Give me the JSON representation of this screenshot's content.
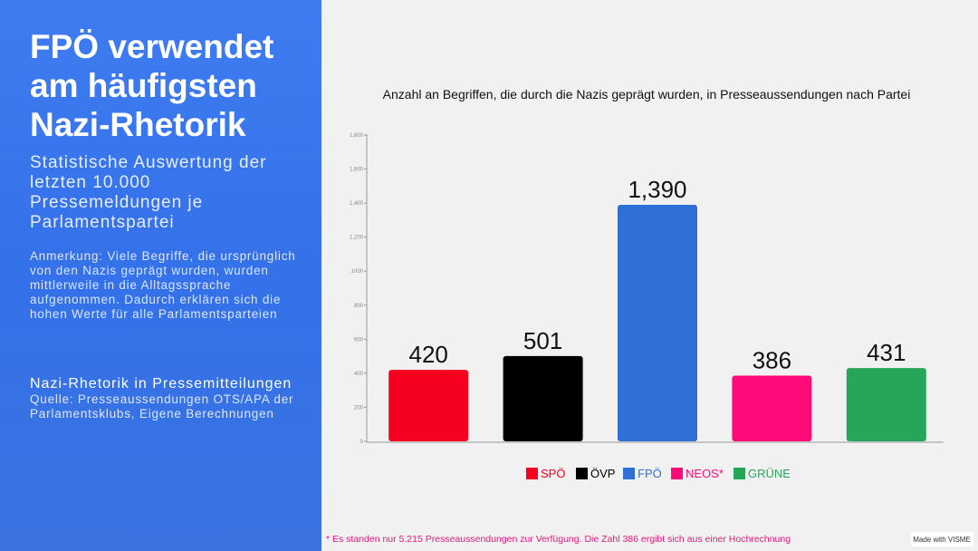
{
  "left_panel": {
    "title": "FPÖ verwendet am häufigsten Nazi-Rhetorik",
    "subtitle": "Statistische Auswertung der letzten 10.000 Pressemeldungen je Parlamentspartei",
    "note": "Anmerkung: Viele Begriffe, die ursprünglich von den Nazis geprägt wurden, wurden mittlerweile in die Alltagssprache aufgenommen. Dadurch erklären sich die hohen Werte für alle Parlamentsparteien",
    "section_title": "Nazi-Rhetorik in Pressemitteilungen",
    "source": "Quelle: Presseaussendungen OTS/APA der Parlamentsklubs, Eigene Berechnungen"
  },
  "chart_data": {
    "type": "bar",
    "title": "Anzahl an Begriffen, die durch die Nazis geprägt wurden, in Presseaussendungen nach Partei",
    "categories": [
      "SPÖ",
      "ÖVP",
      "FPÖ",
      "NEOS*",
      "GRÜNE"
    ],
    "values": [
      420,
      501,
      1390,
      386,
      431
    ],
    "value_labels": [
      "420",
      "501",
      "1,390",
      "386",
      "431"
    ],
    "colors": [
      "#f5001e",
      "#000000",
      "#2f6fd6",
      "#ff0a78",
      "#27a65a"
    ],
    "ylim": [
      0,
      1800
    ],
    "yticks": [
      0,
      200,
      400,
      600,
      800,
      1000,
      {
        "value": 1200,
        "label": "1,200"
      },
      {
        "value": 1400,
        "label": "1,400"
      },
      {
        "value": 1600,
        "label": "1,600"
      },
      {
        "value": 1800,
        "label": "1,800"
      }
    ],
    "legend": "bottom"
  },
  "footnote": "* Es standen nur 5.215 Presseaussendungen zur Verfügung. Die Zahl 386 ergibt sich aus einer Hochrechnung",
  "badge": "Made with VISME"
}
